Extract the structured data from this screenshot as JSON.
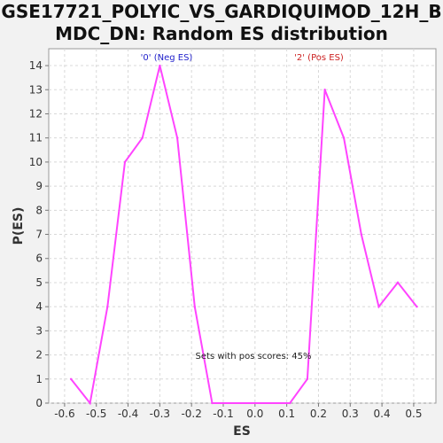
{
  "chart_data": {
    "type": "line",
    "title_line1": "GSE17721_POLYIC_VS_GARDIQUIMOD_12H_B",
    "title_line2": "MDC_DN: Random ES distribution",
    "xlabel": "ES",
    "ylabel": "P(ES)",
    "xlim": [
      -0.65,
      0.57
    ],
    "ylim": [
      0,
      14.7
    ],
    "x_ticks": [
      "-0.6",
      "-0.5",
      "-0.4",
      "-0.3",
      "-0.2",
      "-0.1",
      "0.0",
      "0.1",
      "0.2",
      "0.3",
      "0.4",
      "0.5"
    ],
    "x_tick_values": [
      -0.6,
      -0.5,
      -0.4,
      -0.3,
      -0.2,
      -0.1,
      0.0,
      0.1,
      0.2,
      0.3,
      0.4,
      0.5
    ],
    "y_ticks": [
      "0",
      "1",
      "2",
      "3",
      "4",
      "5",
      "6",
      "7",
      "8",
      "9",
      "10",
      "11",
      "12",
      "13",
      "14"
    ],
    "grid": true,
    "series": [
      {
        "color": "#ff44ff",
        "x": [
          -0.58,
          -0.52,
          -0.465,
          -0.41,
          -0.355,
          -0.3,
          -0.245,
          -0.19,
          -0.135,
          0.11,
          0.165,
          0.22,
          0.28,
          0.335,
          0.39,
          0.45,
          0.51
        ],
        "y": [
          1,
          0,
          4,
          10,
          11,
          14,
          11,
          4,
          0,
          0,
          1,
          13,
          11,
          7,
          4,
          5,
          4
        ]
      }
    ],
    "annotations": {
      "neg": {
        "text": "'0' (Neg ES)",
        "color": "#2222cc"
      },
      "pos": {
        "text": "'2' (Pos ES)",
        "color": "#cc2222"
      },
      "score": {
        "text": "Sets with pos scores: 45%",
        "color": "#222222"
      }
    }
  }
}
